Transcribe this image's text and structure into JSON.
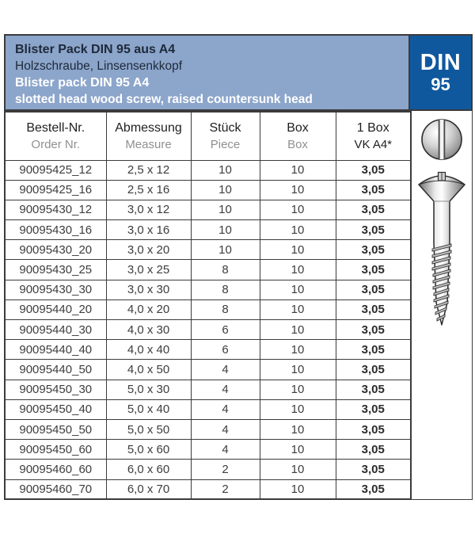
{
  "colors": {
    "header_bg": "#8ca5cb",
    "badge_bg": "#10589e",
    "border_dark": "#3b3b3b",
    "text_dark": "#1f1f1f",
    "text_navy": "#1e2a3a",
    "text_gray": "#909090",
    "cell_text": "#3d3d3d",
    "white": "#ffffff"
  },
  "header": {
    "title_de": "Blister Pack DIN 95 aus A4",
    "subtitle_de": "Holzschraube, Linsensenkkopf",
    "title_en": "Blister pack DIN 95 A4",
    "subtitle_en": "slotted head wood screw, raised countersunk head",
    "badge_line1": "DIN",
    "badge_line2": "95"
  },
  "table": {
    "columns": [
      {
        "label": "Bestell-Nr.",
        "sublabel": "Order Nr."
      },
      {
        "label": "Abmessung",
        "sublabel": "Measure"
      },
      {
        "label": "Stück",
        "sublabel": "Piece"
      },
      {
        "label": "Box",
        "sublabel": "Box"
      },
      {
        "label": "1 Box",
        "sublabel": "VK A4*"
      }
    ],
    "rows": [
      [
        "90095425_12",
        "2,5 x 12",
        "10",
        "10",
        "3,05"
      ],
      [
        "90095425_16",
        "2,5 x 16",
        "10",
        "10",
        "3,05"
      ],
      [
        "90095430_12",
        "3,0 x 12",
        "10",
        "10",
        "3,05"
      ],
      [
        "90095430_16",
        "3,0 x 16",
        "10",
        "10",
        "3,05"
      ],
      [
        "90095430_20",
        "3,0 x 20",
        "10",
        "10",
        "3,05"
      ],
      [
        "90095430_25",
        "3,0 x 25",
        "8",
        "10",
        "3,05"
      ],
      [
        "90095430_30",
        "3,0 x 30",
        "8",
        "10",
        "3,05"
      ],
      [
        "90095440_20",
        "4,0 x 20",
        "8",
        "10",
        "3,05"
      ],
      [
        "90095440_30",
        "4,0 x 30",
        "6",
        "10",
        "3,05"
      ],
      [
        "90095440_40",
        "4,0 x 40",
        "6",
        "10",
        "3,05"
      ],
      [
        "90095440_50",
        "4,0 x 50",
        "4",
        "10",
        "3,05"
      ],
      [
        "90095450_30",
        "5,0 x 30",
        "4",
        "10",
        "3,05"
      ],
      [
        "90095450_40",
        "5,0 x 40",
        "4",
        "10",
        "3,05"
      ],
      [
        "90095450_50",
        "5,0 x 50",
        "4",
        "10",
        "3,05"
      ],
      [
        "90095450_60",
        "5,0 x 60",
        "4",
        "10",
        "3,05"
      ],
      [
        "90095460_60",
        "6,0 x 60",
        "2",
        "10",
        "3,05"
      ],
      [
        "90095460_70",
        "6,0 x 70",
        "2",
        "10",
        "3,05"
      ]
    ]
  },
  "icons": {
    "screw_top_view": "slotted-screw-head-top-view-icon",
    "screw_side_view": "wood-screw-side-view-icon"
  }
}
